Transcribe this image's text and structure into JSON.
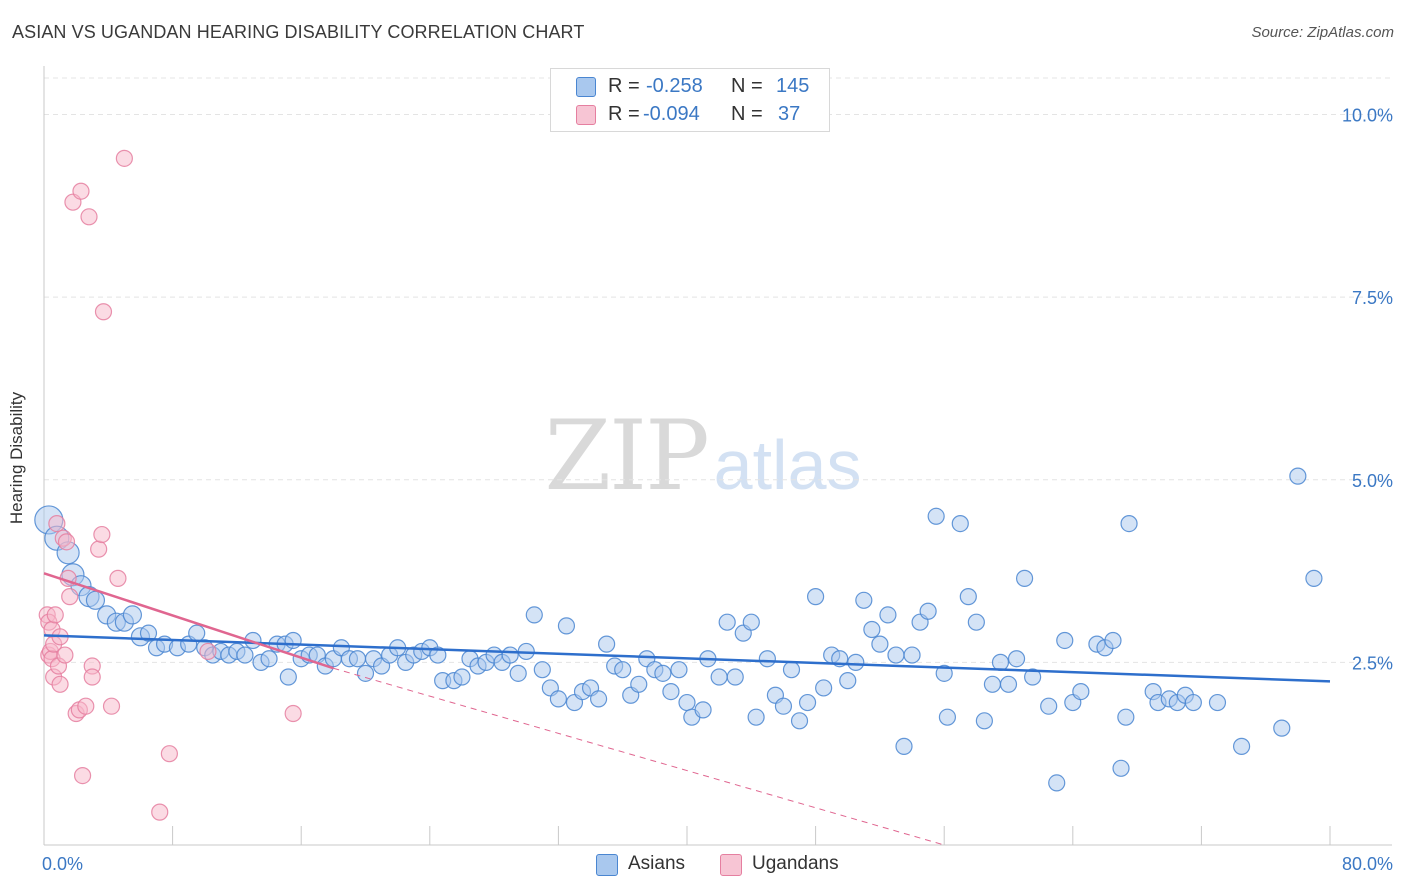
{
  "title": "ASIAN VS UGANDAN HEARING DISABILITY CORRELATION CHART",
  "source": "Source: ZipAtlas.com",
  "watermark": {
    "zip": "ZIP",
    "atlas": "atlas"
  },
  "legend": {
    "r_label": "R =",
    "n_label": "N =",
    "asians": {
      "r": "-0.258",
      "n": "145"
    },
    "ugandans": {
      "r": "-0.094",
      "n": "37"
    }
  },
  "bottom_legend": [
    "Asians",
    "Ugandans"
  ],
  "colors": {
    "asian_fill": "#a9c8ee",
    "asian_stroke": "#4a86d1",
    "asian_line": "#2e6fcc",
    "ugandan_fill": "#f7b8ca",
    "ugandan_stroke": "#e57fa0",
    "ugandan_line": "#e06690",
    "grid": "#e4e4e4",
    "tick_text": "#3b78c4"
  },
  "chart_data": {
    "type": "scatter",
    "title": "ASIAN VS UGANDAN HEARING DISABILITY CORRELATION CHART",
    "ylabel": "Hearing Disability",
    "xlabel": "",
    "xlim": [
      0,
      80
    ],
    "ylim": [
      0,
      10.5
    ],
    "x_tick_labels": [
      "0.0%",
      "80.0%"
    ],
    "y_ticks": [
      2.5,
      5.0,
      7.5,
      10.0
    ],
    "y_tick_labels": [
      "2.5%",
      "5.0%",
      "7.5%",
      "10.0%"
    ],
    "grid": true,
    "series": [
      {
        "name": "Asians",
        "trend": {
          "x": [
            0,
            80
          ],
          "y": [
            2.87,
            2.24
          ]
        },
        "points": [
          [
            0.3,
            4.45,
            14
          ],
          [
            0.8,
            4.2,
            12
          ],
          [
            1.5,
            4.0,
            11
          ],
          [
            1.8,
            3.7,
            11
          ],
          [
            2.3,
            3.55,
            10
          ],
          [
            2.8,
            3.4,
            10
          ],
          [
            3.2,
            3.35,
            9
          ],
          [
            3.9,
            3.15,
            9
          ],
          [
            4.5,
            3.05,
            9
          ],
          [
            5.0,
            3.05,
            9
          ],
          [
            5.5,
            3.15,
            9
          ],
          [
            6.0,
            2.85,
            9
          ],
          [
            6.5,
            2.9,
            8
          ],
          [
            7.0,
            2.7,
            8
          ],
          [
            7.5,
            2.75,
            8
          ],
          [
            8.3,
            2.7,
            8
          ],
          [
            9.0,
            2.75,
            8
          ],
          [
            9.5,
            2.9,
            8
          ],
          [
            10.0,
            2.7,
            8
          ],
          [
            10.5,
            2.6,
            8
          ],
          [
            11.0,
            2.65,
            8
          ],
          [
            11.5,
            2.6,
            8
          ],
          [
            12.0,
            2.65,
            8
          ],
          [
            12.5,
            2.6,
            8
          ],
          [
            13.0,
            2.8,
            8
          ],
          [
            13.5,
            2.5,
            8
          ],
          [
            14.0,
            2.55,
            8
          ],
          [
            14.5,
            2.75,
            8
          ],
          [
            15.0,
            2.75,
            8
          ],
          [
            15.2,
            2.3,
            8
          ],
          [
            15.5,
            2.8,
            8
          ],
          [
            16.0,
            2.55,
            8
          ],
          [
            16.5,
            2.6,
            8
          ],
          [
            17.0,
            2.6,
            8
          ],
          [
            17.5,
            2.45,
            8
          ],
          [
            18.0,
            2.55,
            8
          ],
          [
            18.5,
            2.7,
            8
          ],
          [
            19.0,
            2.55,
            8
          ],
          [
            19.5,
            2.55,
            8
          ],
          [
            20.0,
            2.35,
            8
          ],
          [
            20.5,
            2.55,
            8
          ],
          [
            21.0,
            2.45,
            8
          ],
          [
            21.5,
            2.6,
            8
          ],
          [
            22.0,
            2.7,
            8
          ],
          [
            22.5,
            2.5,
            8
          ],
          [
            23.0,
            2.6,
            8
          ],
          [
            23.5,
            2.65,
            8
          ],
          [
            24.0,
            2.7,
            8
          ],
          [
            24.5,
            2.6,
            8
          ],
          [
            24.8,
            2.25,
            8
          ],
          [
            25.5,
            2.25,
            8
          ],
          [
            26.0,
            2.3,
            8
          ],
          [
            26.5,
            2.55,
            8
          ],
          [
            27.0,
            2.45,
            8
          ],
          [
            27.5,
            2.5,
            8
          ],
          [
            28.0,
            2.6,
            8
          ],
          [
            28.5,
            2.5,
            8
          ],
          [
            29.0,
            2.6,
            8
          ],
          [
            29.5,
            2.35,
            8
          ],
          [
            30.0,
            2.65,
            8
          ],
          [
            30.5,
            3.15,
            8
          ],
          [
            31.0,
            2.4,
            8
          ],
          [
            31.5,
            2.15,
            8
          ],
          [
            32.0,
            2.0,
            8
          ],
          [
            32.5,
            3.0,
            8
          ],
          [
            33.0,
            1.95,
            8
          ],
          [
            33.5,
            2.1,
            8
          ],
          [
            34.0,
            2.15,
            8
          ],
          [
            34.5,
            2.0,
            8
          ],
          [
            35.0,
            2.75,
            8
          ],
          [
            35.5,
            2.45,
            8
          ],
          [
            36.0,
            2.4,
            8
          ],
          [
            36.5,
            2.05,
            8
          ],
          [
            37.0,
            2.2,
            8
          ],
          [
            37.5,
            2.55,
            8
          ],
          [
            38.0,
            2.4,
            8
          ],
          [
            38.5,
            2.35,
            8
          ],
          [
            39.0,
            2.1,
            8
          ],
          [
            39.5,
            2.4,
            8
          ],
          [
            40.0,
            1.95,
            8
          ],
          [
            40.3,
            1.75,
            8
          ],
          [
            41.0,
            1.85,
            8
          ],
          [
            41.3,
            2.55,
            8
          ],
          [
            42.0,
            2.3,
            8
          ],
          [
            42.5,
            3.05,
            8
          ],
          [
            43.0,
            2.3,
            8
          ],
          [
            43.5,
            2.9,
            8
          ],
          [
            44.0,
            3.05,
            8
          ],
          [
            44.3,
            1.75,
            8
          ],
          [
            45.0,
            2.55,
            8
          ],
          [
            45.5,
            2.05,
            8
          ],
          [
            46.0,
            1.9,
            8
          ],
          [
            46.5,
            2.4,
            8
          ],
          [
            47.0,
            1.7,
            8
          ],
          [
            47.5,
            1.95,
            8
          ],
          [
            48.0,
            3.4,
            8
          ],
          [
            48.5,
            2.15,
            8
          ],
          [
            49.0,
            2.6,
            8
          ],
          [
            49.5,
            2.55,
            8
          ],
          [
            50.0,
            2.25,
            8
          ],
          [
            50.5,
            2.5,
            8
          ],
          [
            51.0,
            3.35,
            8
          ],
          [
            51.5,
            2.95,
            8
          ],
          [
            52.0,
            2.75,
            8
          ],
          [
            52.5,
            3.15,
            8
          ],
          [
            53.0,
            2.6,
            8
          ],
          [
            53.5,
            1.35,
            8
          ],
          [
            54.0,
            2.6,
            8
          ],
          [
            54.5,
            3.05,
            8
          ],
          [
            55.0,
            3.2,
            8
          ],
          [
            55.5,
            4.5,
            8
          ],
          [
            56.0,
            2.35,
            8
          ],
          [
            56.2,
            1.75,
            8
          ],
          [
            57.0,
            4.4,
            8
          ],
          [
            57.5,
            3.4,
            8
          ],
          [
            58.0,
            3.05,
            8
          ],
          [
            58.5,
            1.7,
            8
          ],
          [
            59.0,
            2.2,
            8
          ],
          [
            59.5,
            2.5,
            8
          ],
          [
            60.0,
            2.2,
            8
          ],
          [
            60.5,
            2.55,
            8
          ],
          [
            61.0,
            3.65,
            8
          ],
          [
            61.5,
            2.3,
            8
          ],
          [
            62.5,
            1.9,
            8
          ],
          [
            63.0,
            0.85,
            8
          ],
          [
            63.5,
            2.8,
            8
          ],
          [
            64.0,
            1.95,
            8
          ],
          [
            64.5,
            2.1,
            8
          ],
          [
            65.5,
            2.75,
            8
          ],
          [
            66.0,
            2.7,
            8
          ],
          [
            66.5,
            2.8,
            8
          ],
          [
            67.0,
            1.05,
            8
          ],
          [
            67.3,
            1.75,
            8
          ],
          [
            67.5,
            4.4,
            8
          ],
          [
            69.0,
            2.1,
            8
          ],
          [
            69.3,
            1.95,
            8
          ],
          [
            70.0,
            2.0,
            8
          ],
          [
            70.5,
            1.95,
            8
          ],
          [
            71.0,
            2.05,
            8
          ],
          [
            71.5,
            1.95,
            8
          ],
          [
            73.0,
            1.95,
            8
          ],
          [
            74.5,
            1.35,
            8
          ],
          [
            77.0,
            1.6,
            8
          ],
          [
            78.0,
            5.05,
            8
          ],
          [
            79.0,
            3.65,
            8
          ]
        ]
      },
      {
        "name": "Ugandans",
        "trend": {
          "x": [
            0,
            18
          ],
          "y": [
            3.72,
            2.42
          ]
        },
        "trend_extended": {
          "x": [
            18,
            56
          ],
          "y": [
            2.42,
            0
          ]
        },
        "points": [
          [
            0.2,
            3.15,
            8
          ],
          [
            0.3,
            3.05,
            8
          ],
          [
            0.3,
            2.6,
            8
          ],
          [
            0.4,
            2.65,
            8
          ],
          [
            0.5,
            2.55,
            8
          ],
          [
            0.5,
            2.95,
            8
          ],
          [
            0.6,
            2.75,
            8
          ],
          [
            0.6,
            2.3,
            8
          ],
          [
            0.7,
            3.15,
            8
          ],
          [
            0.8,
            4.4,
            8
          ],
          [
            0.9,
            2.45,
            8
          ],
          [
            1.0,
            2.85,
            8
          ],
          [
            1.0,
            2.2,
            8
          ],
          [
            1.2,
            4.2,
            8
          ],
          [
            1.3,
            2.6,
            8
          ],
          [
            1.4,
            4.15,
            8
          ],
          [
            1.5,
            3.65,
            8
          ],
          [
            1.6,
            3.4,
            8
          ],
          [
            1.8,
            8.8,
            8
          ],
          [
            2.0,
            1.8,
            8
          ],
          [
            2.2,
            1.85,
            8
          ],
          [
            2.3,
            8.95,
            8
          ],
          [
            2.4,
            0.95,
            8
          ],
          [
            2.6,
            1.9,
            8
          ],
          [
            2.8,
            8.6,
            8
          ],
          [
            3.0,
            2.45,
            8
          ],
          [
            3.0,
            2.3,
            8
          ],
          [
            3.4,
            4.05,
            8
          ],
          [
            3.6,
            4.25,
            8
          ],
          [
            3.7,
            7.3,
            8
          ],
          [
            4.2,
            1.9,
            8
          ],
          [
            4.6,
            3.65,
            8
          ],
          [
            5.0,
            9.4,
            8
          ],
          [
            7.2,
            0.45,
            8
          ],
          [
            7.8,
            1.25,
            8
          ],
          [
            10.2,
            2.65,
            8
          ],
          [
            15.5,
            1.8,
            8
          ]
        ]
      }
    ]
  }
}
